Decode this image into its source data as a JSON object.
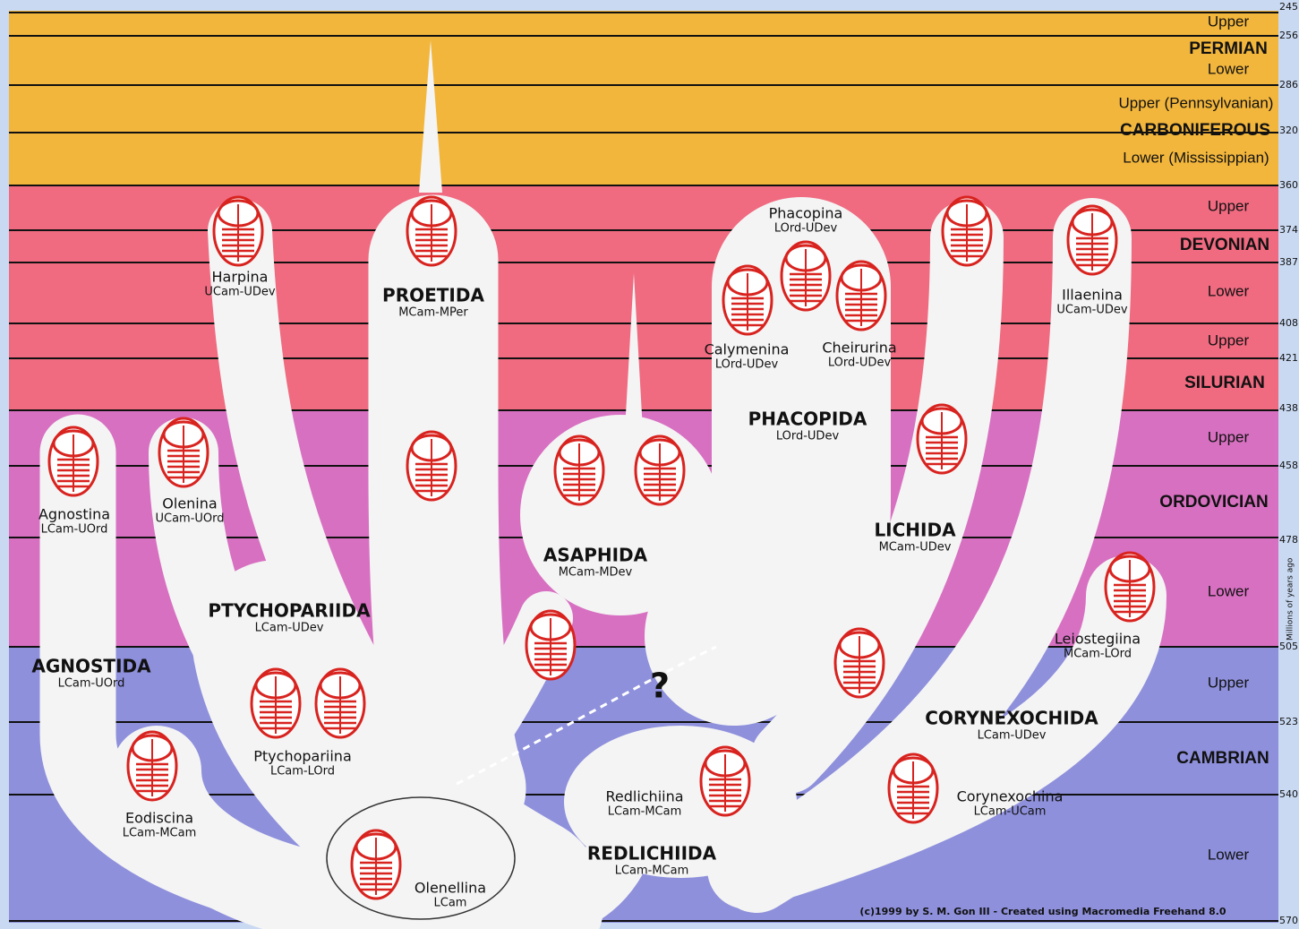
{
  "scale": {
    "divisions": [
      "Upper",
      "PERMIAN",
      "Lower",
      "Upper (Pennsylvanian)",
      "CARBONIFEROUS",
      "Lower (Mississippian)",
      "Upper",
      "DEVONIAN",
      "Lower",
      "Upper",
      "SILURIAN",
      "Upper",
      "ORDOVICIAN",
      "Lower",
      "Upper",
      "CAMBRIAN",
      "Lower"
    ],
    "ages": [
      245,
      256,
      286,
      320,
      360,
      374,
      387,
      408,
      421,
      438,
      458,
      478,
      505,
      523,
      540,
      570
    ],
    "axis_title": "Millions of years ago"
  },
  "clades": [
    {
      "name": "AGNOSTIDA",
      "range": "LCam-UOrd"
    },
    {
      "name": "Agnostina",
      "range": "LCam-UOrd"
    },
    {
      "name": "Eodiscina",
      "range": "LCam-MCam"
    },
    {
      "name": "PTYCHOPARIIDA",
      "range": "LCam-UDev"
    },
    {
      "name": "Olenina",
      "range": "UCam-UOrd"
    },
    {
      "name": "Harpina",
      "range": "UCam-UDev"
    },
    {
      "name": "Ptychopariina",
      "range": "LCam-LOrd"
    },
    {
      "name": "PROETIDA",
      "range": "MCam-MPer"
    },
    {
      "name": "ASAPHIDA",
      "range": "MCam-MDev"
    },
    {
      "name": "Olenellina",
      "range": "LCam"
    },
    {
      "name": "REDLICHIIDA",
      "range": "LCam-MCam"
    },
    {
      "name": "Redlichiina",
      "range": "LCam-MCam"
    },
    {
      "name": "PHACOPIDA",
      "range": "LOrd-UDev"
    },
    {
      "name": "Phacopina",
      "range": "LOrd-UDev"
    },
    {
      "name": "Calymenina",
      "range": "LOrd-UDev"
    },
    {
      "name": "Cheirurina",
      "range": "LOrd-UDev"
    },
    {
      "name": "LICHIDA",
      "range": "MCam-UDev"
    },
    {
      "name": "Illaenina",
      "range": "UCam-UDev"
    },
    {
      "name": "Leiostegiina",
      "range": "MCam-LOrd"
    },
    {
      "name": "CORYNEXOCHIDA",
      "range": "LCam-UDev"
    },
    {
      "name": "Corynexochina",
      "range": "LCam-UCam"
    }
  ],
  "question_mark": "?",
  "credit": "(c)1999 by S. M. Gon III - Created using Macromedia Freehand 8.0"
}
